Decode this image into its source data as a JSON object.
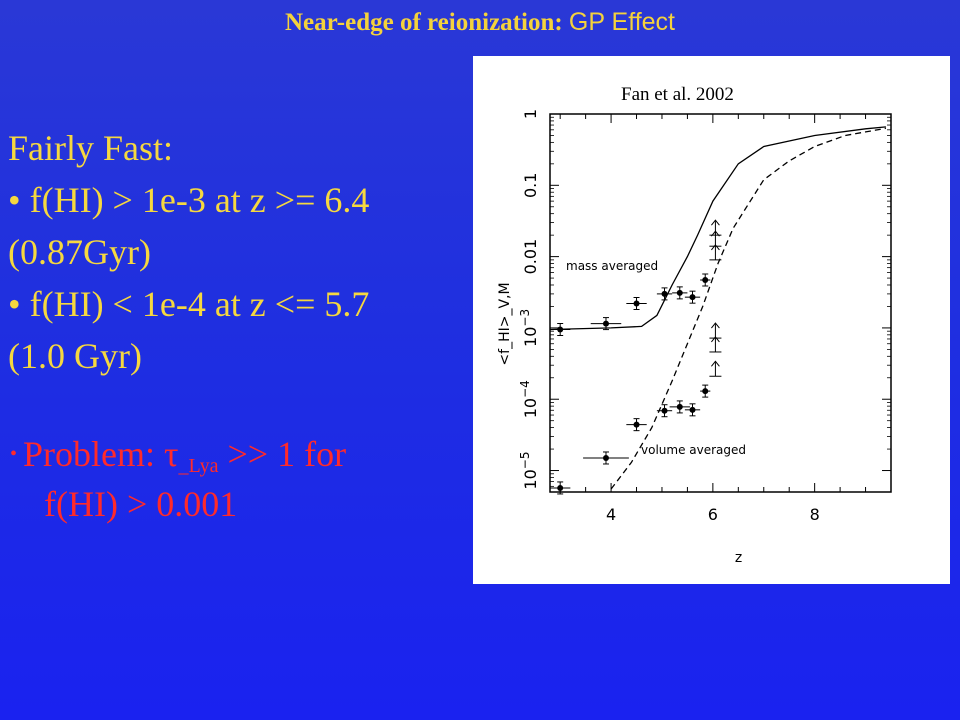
{
  "slide": {
    "title_bold": "Near-edge of reionization:",
    "title_normal": "GP Effect"
  },
  "text": {
    "heading": "Fairly Fast:",
    "bullet1_a": "• f(HI) > 1e-3 at z >= 6.4",
    "bullet1_b": "(0.87Gyr)",
    "bullet2_a": "• f(HI) < 1e-4 at z <= 5.7",
    "bullet2_b": "(1.0 Gyr)",
    "problem_bullet": "•",
    "problem_prefix": "Problem: ",
    "problem_tau": "τ",
    "problem_sub": "_Lya",
    "problem_suffix": " >> 1  for",
    "problem_line2": "f(HI) > 0.001"
  },
  "figure": {
    "caption": "Fan et al. 2002",
    "label_mass": "mass averaged",
    "label_volume": "volume averaged"
  },
  "colors": {
    "yellow_text": "#f6d83f",
    "red_text": "#ff2a2a",
    "background": "#1f2fe0"
  },
  "chart_data": {
    "type": "scatter",
    "xlabel": "z",
    "ylabel": "<f_HI>_V,M",
    "xlim": [
      2.8,
      9.5
    ],
    "ylim": [
      5e-06,
      1
    ],
    "y_scale": "log",
    "x_ticks": [
      4,
      6,
      8
    ],
    "y_ticks": [
      {
        "value": 1e-05,
        "label": "10^-5"
      },
      {
        "value": 0.0001,
        "label": "10^-4"
      },
      {
        "value": 0.001,
        "label": "10^-3"
      },
      {
        "value": 0.01,
        "label": "0.01"
      },
      {
        "value": 0.1,
        "label": "0.1"
      },
      {
        "value": 1,
        "label": "1"
      }
    ],
    "series": [
      {
        "name": "mass averaged",
        "points": [
          {
            "x": 3.0,
            "y": 0.00095,
            "xerr": 0.2
          },
          {
            "x": 3.9,
            "y": 0.00115,
            "xerr": 0.3
          },
          {
            "x": 4.5,
            "y": 0.0022,
            "xerr": 0.2
          },
          {
            "x": 5.05,
            "y": 0.003,
            "xerr": 0.15
          },
          {
            "x": 5.35,
            "y": 0.0031,
            "xerr": 0.15
          },
          {
            "x": 5.6,
            "y": 0.0027,
            "xerr": 0.15
          },
          {
            "x": 5.85,
            "y": 0.0047,
            "xerr": 0.1
          }
        ],
        "lower_limits": [
          {
            "x": 6.05,
            "y": 0.009
          },
          {
            "x": 6.05,
            "y": 0.014
          },
          {
            "x": 6.05,
            "y": 0.02
          }
        ]
      },
      {
        "name": "volume averaged",
        "points": [
          {
            "x": 3.0,
            "y": 5.7e-06,
            "xerr": 0.2
          },
          {
            "x": 3.9,
            "y": 1.5e-05,
            "xerr": 0.45
          },
          {
            "x": 4.5,
            "y": 4.4e-05,
            "xerr": 0.2
          },
          {
            "x": 5.05,
            "y": 6.9e-05,
            "xerr": 0.15
          },
          {
            "x": 5.35,
            "y": 7.8e-05,
            "xerr": 0.2
          },
          {
            "x": 5.6,
            "y": 7.1e-05,
            "xerr": 0.15
          },
          {
            "x": 5.85,
            "y": 0.00013,
            "xerr": 0.1
          }
        ],
        "lower_limits": [
          {
            "x": 6.05,
            "y": 0.00021
          },
          {
            "x": 6.05,
            "y": 0.00046
          },
          {
            "x": 6.05,
            "y": 0.00072
          }
        ]
      }
    ],
    "model_curves": [
      {
        "style": "solid",
        "points": [
          [
            2.8,
            0.00095
          ],
          [
            4.0,
            0.001
          ],
          [
            4.6,
            0.00105
          ],
          [
            4.9,
            0.0015
          ],
          [
            5.2,
            0.004
          ],
          [
            5.5,
            0.01
          ],
          [
            5.7,
            0.02
          ],
          [
            6.0,
            0.06
          ],
          [
            6.5,
            0.2
          ],
          [
            7.0,
            0.35
          ],
          [
            8.0,
            0.5
          ],
          [
            9.0,
            0.62
          ],
          [
            9.4,
            0.66
          ]
        ]
      },
      {
        "style": "dashed",
        "points": [
          [
            4.0,
            5.5e-06
          ],
          [
            4.4,
            1.3e-05
          ],
          [
            4.8,
            4e-05
          ],
          [
            5.2,
            0.00018
          ],
          [
            5.5,
            0.0006
          ],
          [
            5.8,
            0.002
          ],
          [
            6.1,
            0.008
          ],
          [
            6.4,
            0.025
          ],
          [
            7.0,
            0.12
          ],
          [
            7.5,
            0.22
          ],
          [
            8.0,
            0.35
          ],
          [
            8.6,
            0.5
          ],
          [
            9.4,
            0.63
          ]
        ]
      }
    ]
  }
}
